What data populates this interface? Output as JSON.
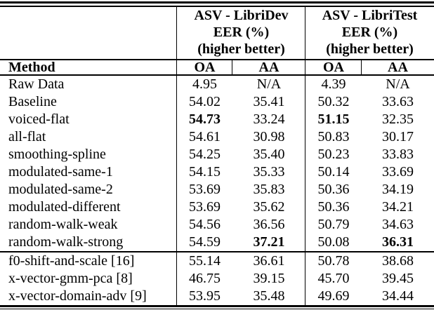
{
  "table": {
    "groups": [
      {
        "line1": "ASV - LibriDev",
        "line2": "EER (%)",
        "line3": "(higher better)",
        "col_oa": "OA",
        "col_aa": "AA"
      },
      {
        "line1": "ASV - LibriTest",
        "line2": "EER (%)",
        "line3": "(higher better)",
        "col_oa": "OA",
        "col_aa": "AA"
      }
    ],
    "method_header": "Method",
    "rows": [
      {
        "method": "Raw Data",
        "dev_oa": "4.95",
        "dev_aa": "N/A",
        "test_oa": "4.39",
        "test_aa": "N/A"
      },
      {
        "method": "Baseline",
        "dev_oa": "54.02",
        "dev_aa": "35.41",
        "test_oa": "50.32",
        "test_aa": "33.63"
      },
      {
        "method": "voiced-flat",
        "dev_oa": "54.73",
        "dev_aa": "33.24",
        "test_oa": "51.15",
        "test_aa": "32.35"
      },
      {
        "method": "all-flat",
        "dev_oa": "54.61",
        "dev_aa": "30.98",
        "test_oa": "50.83",
        "test_aa": "30.17"
      },
      {
        "method": "smoothing-spline",
        "dev_oa": "54.25",
        "dev_aa": "35.40",
        "test_oa": "50.23",
        "test_aa": "33.83"
      },
      {
        "method": "modulated-same-1",
        "dev_oa": "54.15",
        "dev_aa": "35.33",
        "test_oa": "50.14",
        "test_aa": "33.69"
      },
      {
        "method": "modulated-same-2",
        "dev_oa": "53.69",
        "dev_aa": "35.83",
        "test_oa": "50.36",
        "test_aa": "34.19"
      },
      {
        "method": "modulated-different",
        "dev_oa": "53.69",
        "dev_aa": "35.62",
        "test_oa": "50.36",
        "test_aa": "34.21"
      },
      {
        "method": "random-walk-weak",
        "dev_oa": "54.56",
        "dev_aa": "36.56",
        "test_oa": "50.79",
        "test_aa": "34.63"
      },
      {
        "method": "random-walk-strong",
        "dev_oa": "54.59",
        "dev_aa": "37.21",
        "test_oa": "50.08",
        "test_aa": "36.31"
      },
      {
        "method": "f0-shift-and-scale [16]",
        "dev_oa": "55.14",
        "dev_aa": "36.61",
        "test_oa": "50.78",
        "test_aa": "38.68"
      },
      {
        "method": "x-vector-gmm-pca [8]",
        "dev_oa": "46.75",
        "dev_aa": "39.15",
        "test_oa": "45.70",
        "test_aa": "39.45"
      },
      {
        "method": "x-vector-domain-adv [9]",
        "dev_oa": "53.95",
        "dev_aa": "35.48",
        "test_oa": "49.69",
        "test_aa": "34.44"
      }
    ]
  }
}
